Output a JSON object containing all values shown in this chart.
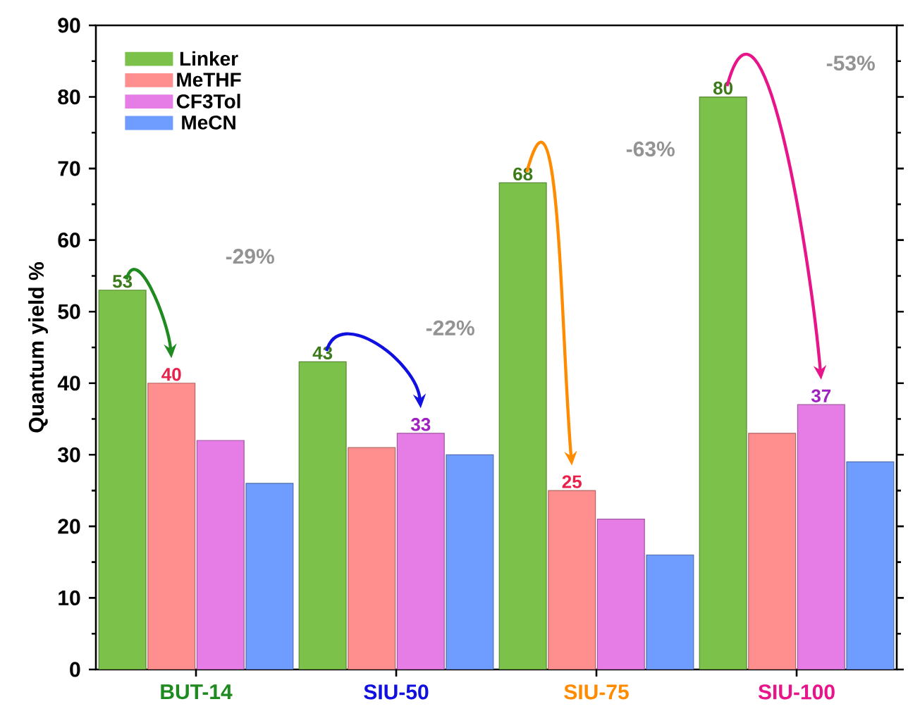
{
  "chart_data": {
    "type": "bar",
    "ylabel": "Quantum yield %",
    "categories": [
      "BUT-14",
      "SIU-50",
      "SIU-75",
      "SIU-100"
    ],
    "series": [
      {
        "name": "Linker",
        "color": "#7cc24a",
        "values": [
          53,
          43,
          68,
          80
        ],
        "value_labels": [
          "53",
          "43",
          "68",
          "80"
        ]
      },
      {
        "name": "MeTHF",
        "color": "#ff8f8f",
        "values": [
          40,
          31,
          25,
          33
        ],
        "value_labels": [
          "40",
          null,
          "25",
          null
        ]
      },
      {
        "name": "CF3Tol",
        "color": "#e67ce6",
        "values": [
          32,
          33,
          21,
          37
        ],
        "value_labels": [
          null,
          "33",
          null,
          "37"
        ]
      },
      {
        "name": "MeCN",
        "color": "#6f9cff",
        "values": [
          26,
          30,
          16,
          29
        ],
        "value_labels": [
          null,
          null,
          null,
          null
        ]
      }
    ],
    "ylim": [
      0,
      90
    ],
    "yticks": [
      0,
      10,
      20,
      30,
      40,
      50,
      60,
      70,
      80,
      90
    ],
    "annotations": [
      "-29%",
      "-22%",
      "-63%",
      "-53%"
    ],
    "legend": "top left",
    "grid": false
  }
}
